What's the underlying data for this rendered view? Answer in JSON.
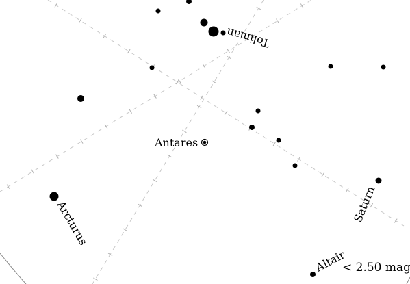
{
  "labels": {
    "antares": "Antares",
    "toliman": "Toliman",
    "arcturus": "Arcturus",
    "saturn": "Saturn",
    "altair": "Altair",
    "magnitude_limit": "< 2.50 mag"
  },
  "colors": {
    "background": "#ffffff",
    "stars": "#000000",
    "grid": "#c8c8c8"
  },
  "icons": {
    "antares": "ringed-dot-icon",
    "stars": "filled-dot-icon"
  }
}
